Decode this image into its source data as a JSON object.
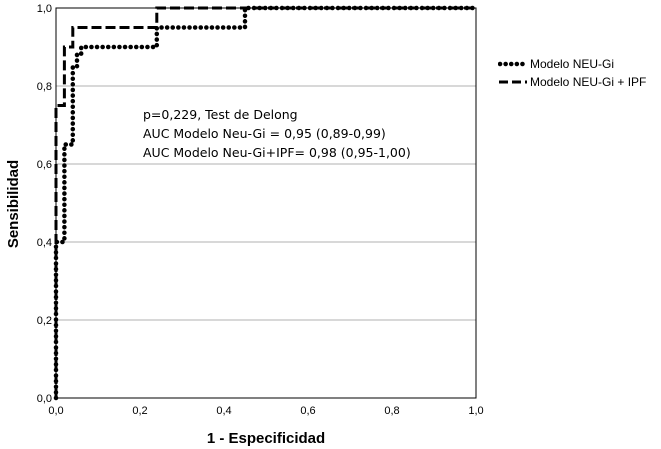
{
  "chart_data": {
    "type": "line",
    "title": "",
    "xlabel": "1 - Especificidad",
    "ylabel": "Sensibilidad",
    "xlim": [
      0.0,
      1.0
    ],
    "ylim": [
      0.0,
      1.0
    ],
    "x_ticks": [
      "0,0",
      "0,2",
      "0,4",
      "0,6",
      "0,8",
      "1,0"
    ],
    "y_ticks": [
      "0,0",
      "0,2",
      "0,4",
      "0,6",
      "0,8",
      "1,0"
    ],
    "grid": "horizontal",
    "legend_position": "right",
    "annotations": [
      "p=0,229, Test de Delong",
      "AUC Modelo Neu-Gi = 0,95 (0,89-0,99)",
      "AUC Modelo Neu-Gi+IPF= 0,98 (0,95-1,00)"
    ],
    "series": [
      {
        "name": "Modelo NEU-Gi",
        "style": "dotted-thick",
        "color": "#000000",
        "x": [
          0.0,
          0.0,
          0.0,
          0.01,
          0.01,
          0.02,
          0.02,
          0.03,
          0.03,
          0.04,
          0.04,
          0.05,
          0.05,
          0.06,
          0.06,
          0.24,
          0.24,
          0.45,
          0.45,
          1.0
        ],
        "y": [
          0.0,
          0.35,
          0.4,
          0.4,
          0.4,
          0.4,
          0.65,
          0.65,
          0.65,
          0.65,
          0.85,
          0.85,
          0.88,
          0.88,
          0.9,
          0.9,
          0.95,
          0.95,
          1.0,
          1.0
        ]
      },
      {
        "name": "Modelo NEU-Gi + IPF",
        "style": "dashed",
        "color": "#000000",
        "x": [
          0.0,
          0.0,
          0.02,
          0.02,
          0.04,
          0.04,
          0.24,
          0.24,
          1.0
        ],
        "y": [
          0.0,
          0.75,
          0.75,
          0.9,
          0.9,
          0.95,
          0.95,
          1.0,
          1.0
        ]
      }
    ]
  }
}
